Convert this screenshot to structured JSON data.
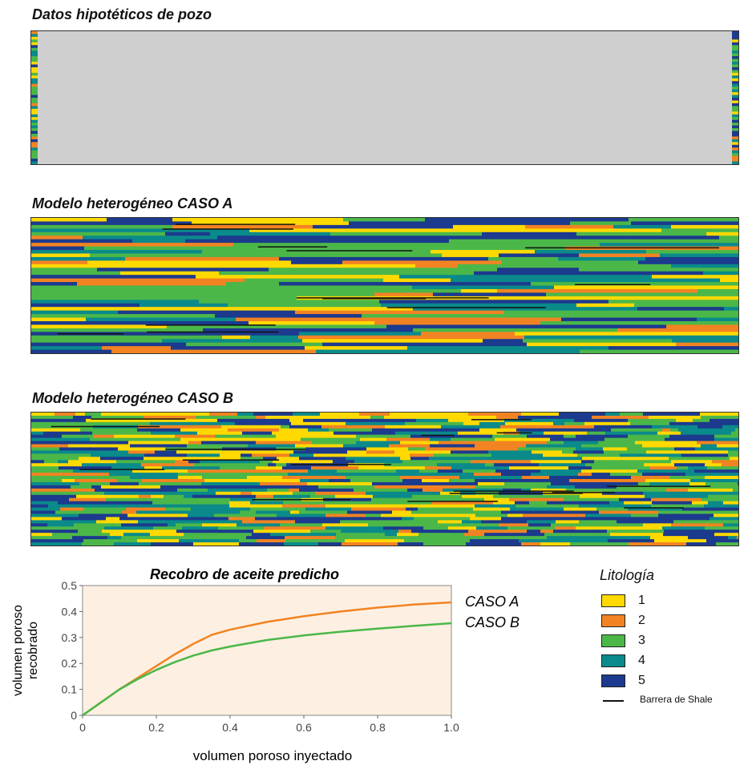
{
  "titles": {
    "well": "Datos hipotéticos de pozo",
    "case_a": "Modelo heterogéneo CASO A",
    "case_b": "Modelo heterogéneo CASO B"
  },
  "colors": {
    "lith_1": "#ffd900",
    "lith_2": "#f28322",
    "lith_3": "#4bb749",
    "lith_4": "#0a8a8a",
    "lith_5": "#1c3a8e",
    "well_background": "#cfcfcf",
    "plot_background": "#fdf0e2",
    "shale": "#111111"
  },
  "legend": {
    "title": "Litología",
    "items": [
      {
        "label": "1",
        "color": "#ffd900"
      },
      {
        "label": "2",
        "color": "#f28322"
      },
      {
        "label": "3",
        "color": "#4bb749"
      },
      {
        "label": "4",
        "color": "#0a8a8a"
      },
      {
        "label": "5",
        "color": "#1c3a8e"
      }
    ],
    "shale_label": "Barrera de Shale"
  },
  "chart_data": {
    "type": "line",
    "title": "Recobro de aceite predicho",
    "xlabel": "volumen poroso inyectado",
    "ylabel": [
      "volumen poroso",
      "recobrado"
    ],
    "xlim": [
      0,
      1.0
    ],
    "ylim": [
      0,
      0.5
    ],
    "xticks": [
      "0",
      "0.2",
      "0.4",
      "0.6",
      "0.8",
      "1.0"
    ],
    "yticks": [
      "0",
      "0.1",
      "0.2",
      "0.3",
      "0.4",
      "0.5"
    ],
    "grid": false,
    "series": [
      {
        "name": "CASO A",
        "color": "#f28322",
        "x": [
          0,
          0.05,
          0.1,
          0.15,
          0.2,
          0.25,
          0.3,
          0.35,
          0.4,
          0.5,
          0.6,
          0.7,
          0.8,
          0.9,
          1.0
        ],
        "y": [
          0,
          0.05,
          0.1,
          0.145,
          0.19,
          0.235,
          0.275,
          0.31,
          0.33,
          0.36,
          0.382,
          0.4,
          0.415,
          0.427,
          0.435
        ]
      },
      {
        "name": "CASO B",
        "color": "#4bb749",
        "x": [
          0,
          0.05,
          0.1,
          0.15,
          0.2,
          0.25,
          0.3,
          0.35,
          0.4,
          0.5,
          0.6,
          0.7,
          0.8,
          0.9,
          1.0
        ],
        "y": [
          0,
          0.05,
          0.1,
          0.14,
          0.175,
          0.205,
          0.23,
          0.25,
          0.265,
          0.29,
          0.308,
          0.322,
          0.334,
          0.345,
          0.355
        ]
      }
    ]
  }
}
